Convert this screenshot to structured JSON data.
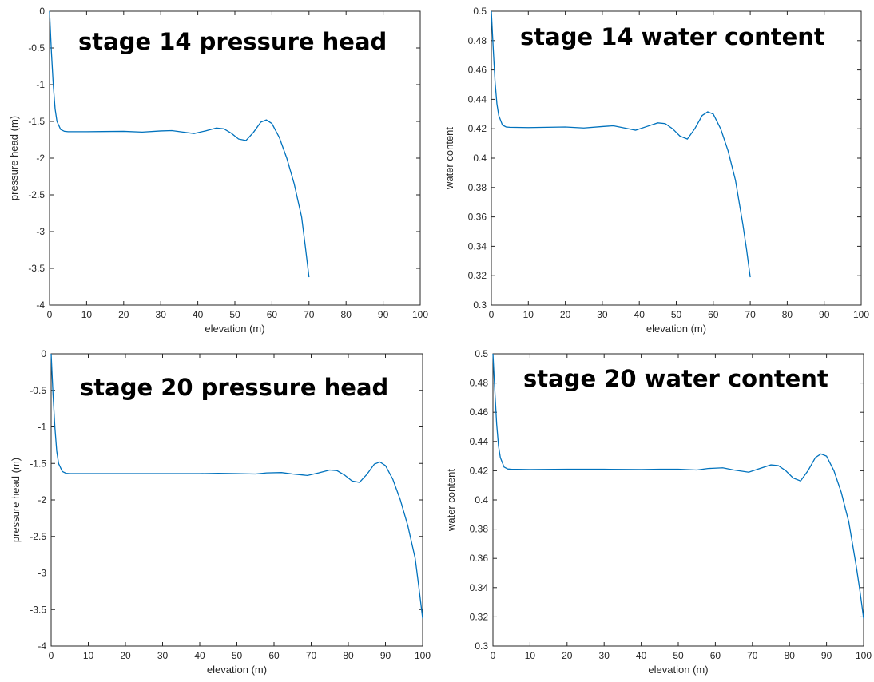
{
  "figure": {
    "line_color": "#0072bd",
    "axis_color": "#262626",
    "background": "#ffffff"
  },
  "chart_data": [
    {
      "type": "line",
      "title": "stage 14 pressure head",
      "xlabel": "elevation (m)",
      "ylabel": "pressure head (m)",
      "xlim": [
        0,
        100
      ],
      "ylim": [
        -4,
        0
      ],
      "xticks": [
        0,
        10,
        20,
        30,
        40,
        50,
        60,
        70,
        80,
        90,
        100
      ],
      "yticks": [
        0,
        -0.5,
        -1,
        -1.5,
        -2,
        -2.5,
        -3,
        -3.5,
        -4
      ],
      "xtick_labels": [
        "0",
        "10",
        "20",
        "30",
        "40",
        "50",
        "60",
        "70",
        "80",
        "90",
        "100"
      ],
      "ytick_labels": [
        "0",
        "-0.5",
        "-1",
        "-1.5",
        "-2",
        "-2.5",
        "-3",
        "-3.5",
        "-4"
      ],
      "grid": false,
      "series": [
        {
          "x": [
            0,
            0.5,
            1,
            1.5,
            2,
            3,
            4,
            5,
            10,
            20,
            25,
            30,
            33,
            36,
            39,
            42,
            45,
            47,
            49,
            51,
            53,
            55,
            57,
            58.5,
            60,
            62,
            64,
            66,
            68,
            69,
            70
          ],
          "y": [
            0,
            -0.55,
            -1.0,
            -1.33,
            -1.5,
            -1.61,
            -1.635,
            -1.64,
            -1.64,
            -1.635,
            -1.645,
            -1.63,
            -1.625,
            -1.645,
            -1.665,
            -1.63,
            -1.59,
            -1.6,
            -1.66,
            -1.74,
            -1.76,
            -1.65,
            -1.51,
            -1.48,
            -1.53,
            -1.72,
            -2.0,
            -2.35,
            -2.8,
            -3.2,
            -3.62
          ]
        }
      ]
    },
    {
      "type": "line",
      "title": "stage 14 water content",
      "xlabel": "elevation (m)",
      "ylabel": "water content",
      "xlim": [
        0,
        100
      ],
      "ylim": [
        0.3,
        0.5
      ],
      "xticks": [
        0,
        10,
        20,
        30,
        40,
        50,
        60,
        70,
        80,
        90,
        100
      ],
      "yticks": [
        0.5,
        0.48,
        0.46,
        0.44,
        0.42,
        0.4,
        0.38,
        0.36,
        0.34,
        0.32,
        0.3
      ],
      "xtick_labels": [
        "0",
        "10",
        "20",
        "30",
        "40",
        "50",
        "60",
        "70",
        "80",
        "90",
        "100"
      ],
      "ytick_labels": [
        "0.5",
        "0.48",
        "0.46",
        "0.44",
        "0.42",
        "0.4",
        "0.38",
        "0.36",
        "0.34",
        "0.32",
        "0.3"
      ],
      "grid": false,
      "series": [
        {
          "x": [
            0,
            0.5,
            1,
            1.5,
            2,
            3,
            4,
            5,
            10,
            20,
            25,
            30,
            33,
            36,
            39,
            42,
            45,
            47,
            49,
            51,
            53,
            55,
            57,
            58.5,
            60,
            62,
            64,
            66,
            68,
            69,
            70
          ],
          "y": [
            0.5,
            0.475,
            0.452,
            0.437,
            0.429,
            0.4225,
            0.4212,
            0.421,
            0.4208,
            0.4212,
            0.4205,
            0.4215,
            0.422,
            0.4205,
            0.419,
            0.4215,
            0.424,
            0.4235,
            0.42,
            0.415,
            0.413,
            0.42,
            0.429,
            0.4315,
            0.43,
            0.42,
            0.405,
            0.385,
            0.355,
            0.338,
            0.319
          ]
        }
      ]
    },
    {
      "type": "line",
      "title": "stage 20 pressure head",
      "xlabel": "elevation (m)",
      "ylabel": "pressure head (m)",
      "xlim": [
        0,
        100
      ],
      "ylim": [
        -4,
        0
      ],
      "xticks": [
        0,
        10,
        20,
        30,
        40,
        50,
        60,
        70,
        80,
        90,
        100
      ],
      "yticks": [
        0,
        -0.5,
        -1,
        -1.5,
        -2,
        -2.5,
        -3,
        -3.5,
        -4
      ],
      "xtick_labels": [
        "0",
        "10",
        "20",
        "30",
        "40",
        "50",
        "60",
        "70",
        "80",
        "90",
        "100"
      ],
      "ytick_labels": [
        "0",
        "-0.5",
        "-1",
        "-1.5",
        "-2",
        "-2.5",
        "-3",
        "-3.5",
        "-4"
      ],
      "grid": false,
      "series": [
        {
          "x": [
            0,
            0.5,
            1,
            1.5,
            2,
            3,
            4,
            5,
            10,
            20,
            30,
            40,
            45,
            50,
            55,
            58,
            62,
            65,
            69,
            72,
            75,
            77,
            79,
            81,
            83,
            85,
            87,
            88.5,
            90,
            92,
            94,
            96,
            98,
            99,
            100
          ],
          "y": [
            0,
            -0.55,
            -1.0,
            -1.33,
            -1.5,
            -1.61,
            -1.635,
            -1.64,
            -1.64,
            -1.64,
            -1.64,
            -1.64,
            -1.635,
            -1.64,
            -1.645,
            -1.63,
            -1.625,
            -1.645,
            -1.665,
            -1.63,
            -1.59,
            -1.6,
            -1.66,
            -1.74,
            -1.76,
            -1.65,
            -1.51,
            -1.48,
            -1.53,
            -1.72,
            -2.0,
            -2.35,
            -2.8,
            -3.2,
            -3.62
          ]
        }
      ]
    },
    {
      "type": "line",
      "title": "stage 20 water content",
      "xlabel": "elevation (m)",
      "ylabel": "water content",
      "xlim": [
        0,
        100
      ],
      "ylim": [
        0.3,
        0.5
      ],
      "xticks": [
        0,
        10,
        20,
        30,
        40,
        50,
        60,
        70,
        80,
        90,
        100
      ],
      "yticks": [
        0.5,
        0.48,
        0.46,
        0.44,
        0.42,
        0.4,
        0.38,
        0.36,
        0.34,
        0.32,
        0.3
      ],
      "xtick_labels": [
        "0",
        "10",
        "20",
        "30",
        "40",
        "50",
        "60",
        "70",
        "80",
        "90",
        "100"
      ],
      "ytick_labels": [
        "0.5",
        "0.48",
        "0.46",
        "0.44",
        "0.42",
        "0.4",
        "0.38",
        "0.36",
        "0.34",
        "0.32",
        "0.3"
      ],
      "grid": false,
      "series": [
        {
          "x": [
            0,
            0.5,
            1,
            1.5,
            2,
            3,
            4,
            5,
            10,
            20,
            30,
            40,
            45,
            50,
            55,
            58,
            62,
            65,
            69,
            72,
            75,
            77,
            79,
            81,
            83,
            85,
            87,
            88.5,
            90,
            92,
            94,
            96,
            98,
            99,
            100
          ],
          "y": [
            0.5,
            0.475,
            0.452,
            0.437,
            0.429,
            0.4225,
            0.4212,
            0.421,
            0.4208,
            0.421,
            0.421,
            0.4208,
            0.421,
            0.421,
            0.4205,
            0.4215,
            0.422,
            0.4205,
            0.419,
            0.4215,
            0.424,
            0.4235,
            0.42,
            0.415,
            0.413,
            0.42,
            0.429,
            0.4315,
            0.43,
            0.42,
            0.405,
            0.385,
            0.355,
            0.338,
            0.319
          ]
        }
      ]
    }
  ]
}
